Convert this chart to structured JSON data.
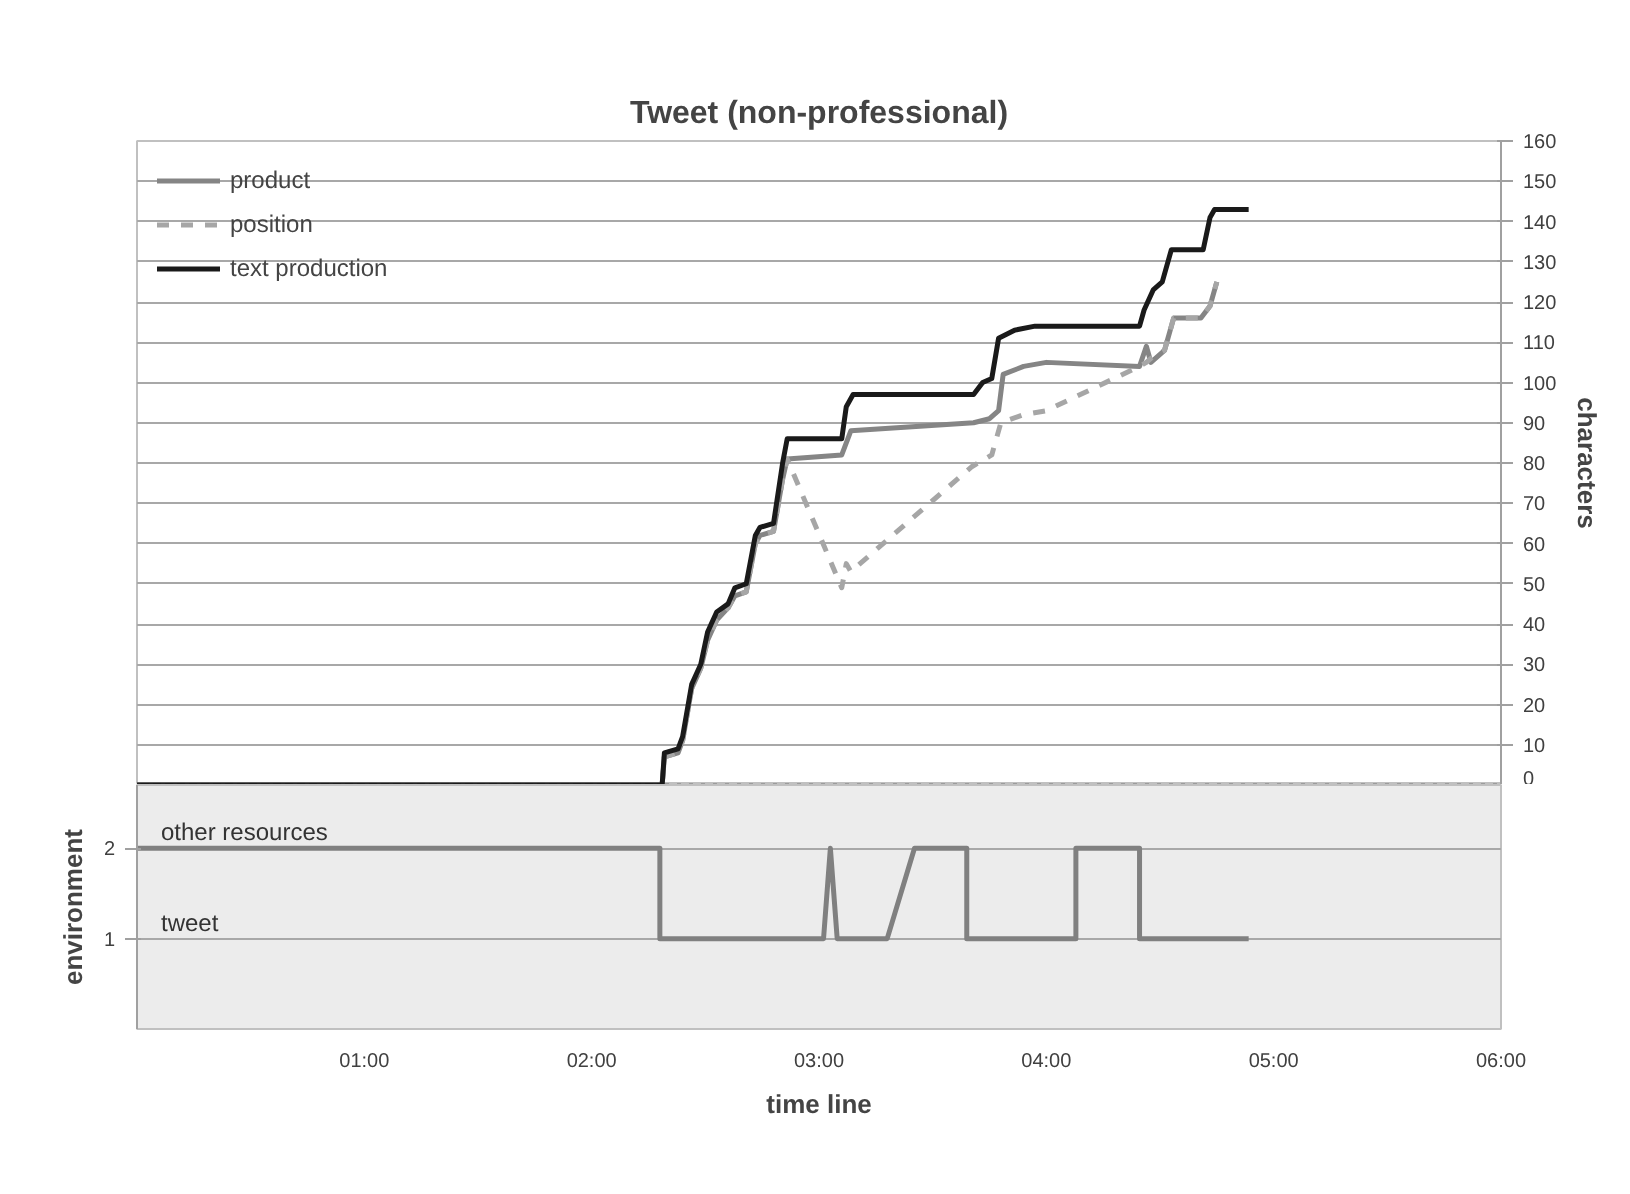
{
  "chart_data": [
    {
      "type": "line",
      "title": "Tweet (non-professional)",
      "ylabel": "characters",
      "xlim": [
        0,
        6
      ],
      "ylim": [
        0,
        160
      ],
      "yticks": [
        0,
        10,
        20,
        30,
        40,
        50,
        60,
        70,
        80,
        90,
        100,
        110,
        120,
        130,
        140,
        150,
        160
      ],
      "tick_labels": "y",
      "grid": "y",
      "legend": "top left",
      "ref_lines": [
        {
          "axis": "y",
          "value": 0,
          "color": "#333333",
          "line_style": "dotted"
        }
      ],
      "series": [
        {
          "name": "product",
          "color": "#858585",
          "line_style": "solid",
          "x": [
            0,
            2.31,
            2.32,
            2.38,
            2.4,
            2.44,
            2.48,
            2.51,
            2.55,
            2.6,
            2.63,
            2.68,
            2.72,
            2.74,
            2.8,
            2.84,
            2.86,
            3.1,
            3.14,
            3.68,
            3.75,
            3.79,
            3.81,
            3.9,
            4.0,
            4.41,
            4.44,
            4.46,
            4.52,
            4.56,
            4.68,
            4.72,
            4.75
          ],
          "values": [
            0,
            0,
            7,
            8,
            11,
            24,
            29,
            36,
            41,
            44,
            47,
            48,
            60,
            62,
            63,
            76,
            81,
            82,
            88,
            90,
            91,
            93,
            102,
            104,
            105,
            104,
            109,
            105,
            108,
            116,
            116,
            119,
            125
          ]
        },
        {
          "name": "position",
          "color": "#a6a6a6",
          "line_style": "dashed",
          "x": [
            0,
            2.31,
            2.32,
            2.38,
            2.4,
            2.44,
            2.48,
            2.51,
            2.55,
            2.6,
            2.63,
            2.68,
            2.72,
            2.74,
            2.8,
            2.84,
            2.86,
            3.1,
            3.12,
            3.14,
            3.67,
            3.76,
            3.8,
            3.9,
            4.0,
            4.41,
            4.44,
            4.46,
            4.52,
            4.56,
            4.68,
            4.72,
            4.75
          ],
          "values": [
            0,
            0,
            7,
            8,
            11,
            24,
            29,
            36,
            41,
            44,
            47,
            48,
            60,
            62,
            63,
            76,
            81,
            49,
            55,
            53,
            79,
            82,
            90,
            92,
            93,
            104,
            105,
            106,
            108,
            116,
            116,
            119,
            125
          ]
        },
        {
          "name": "text production",
          "color": "#1a1a1a",
          "line_style": "solid",
          "x": [
            0,
            2.31,
            2.32,
            2.38,
            2.4,
            2.44,
            2.48,
            2.51,
            2.55,
            2.6,
            2.63,
            2.68,
            2.72,
            2.74,
            2.8,
            2.84,
            2.86,
            3.1,
            3.12,
            3.15,
            3.68,
            3.72,
            3.76,
            3.79,
            3.86,
            3.95,
            4.41,
            4.43,
            4.47,
            4.51,
            4.55,
            4.69,
            4.72,
            4.74,
            4.89
          ],
          "values": [
            0,
            0,
            8,
            9,
            12,
            25,
            30,
            38,
            43,
            45,
            49,
            50,
            62,
            64,
            65,
            80,
            86,
            86,
            94,
            97,
            97,
            100,
            101,
            111,
            113,
            114,
            114,
            118,
            123,
            125,
            133,
            133,
            141,
            143,
            143
          ]
        }
      ]
    },
    {
      "type": "line",
      "xlabel": "time line",
      "ylabel": "environment",
      "xlim": [
        0,
        6
      ],
      "ylim": [
        0,
        2.7
      ],
      "yticks": [
        1,
        2
      ],
      "xticks": [
        {
          "value": 1,
          "label": "01:00"
        },
        {
          "value": 2,
          "label": "02:00"
        },
        {
          "value": 3,
          "label": "03:00"
        },
        {
          "value": 4,
          "label": "04:00"
        },
        {
          "value": 5,
          "label": "05:00"
        },
        {
          "value": 6,
          "label": "06:00"
        }
      ],
      "grid": "y",
      "annotations": [
        "other resources",
        "tweet"
      ],
      "series": [
        {
          "color": "#808080",
          "x": [
            0,
            2.3,
            2.3,
            3.02,
            3.05,
            3.08,
            3.3,
            3.42,
            3.65,
            3.65,
            4.13,
            4.13,
            4.41,
            4.41,
            4.89
          ],
          "values": [
            2,
            2,
            1,
            1,
            2,
            1,
            1,
            2,
            2,
            1,
            1,
            2,
            2,
            1,
            1
          ]
        }
      ]
    }
  ]
}
